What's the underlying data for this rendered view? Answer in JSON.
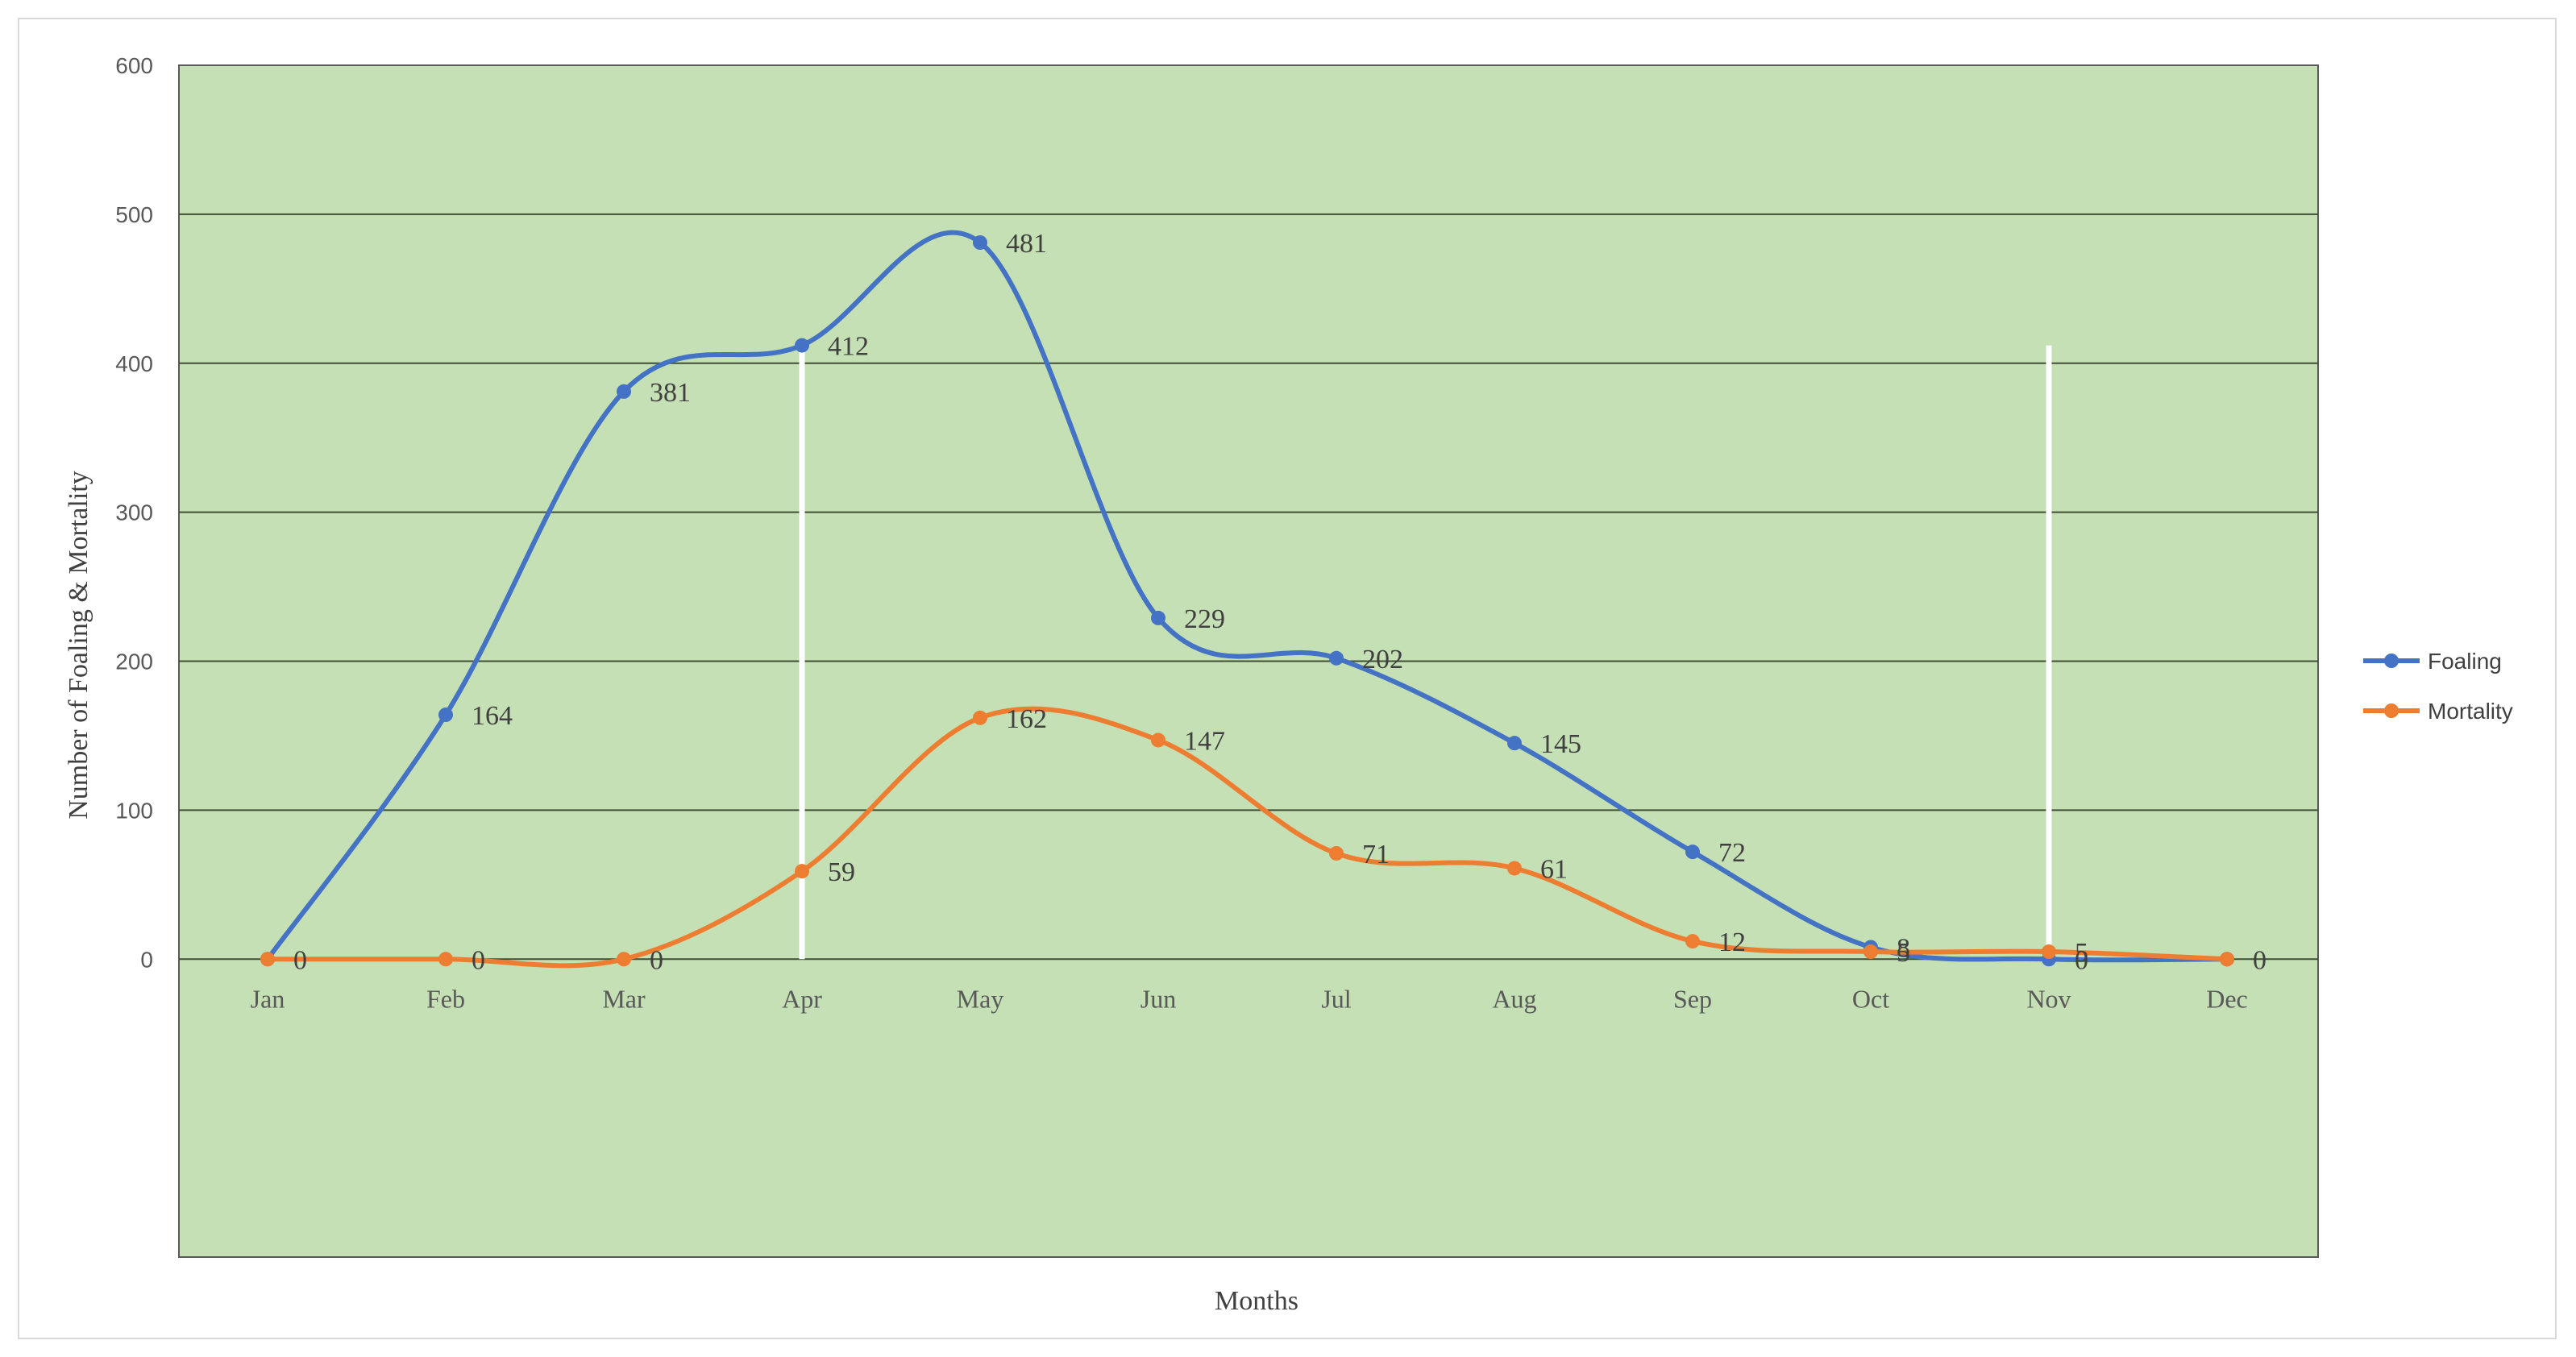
{
  "chart_data": {
    "type": "line",
    "smooth": true,
    "title": "",
    "xlabel": "Months",
    "ylabel": "Number of Foaling & Mortality",
    "ylim": [
      -200,
      600
    ],
    "yticks": [
      "0",
      "100",
      "200",
      "300",
      "400",
      "500",
      "600"
    ],
    "categories": [
      "Jan",
      "Feb",
      "Mar",
      "Apr",
      "May",
      "Jun",
      "Jul",
      "Aug",
      "Sep",
      "Oct",
      "Nov",
      "Dec"
    ],
    "grid": true,
    "legend": "right",
    "plot_background": "#c5e0b4",
    "series": [
      {
        "name": "Foaling",
        "color": "#4472c4",
        "values": [
          0,
          164,
          381,
          412,
          481,
          229,
          202,
          145,
          72,
          8,
          0,
          0
        ],
        "labels": [
          "",
          "164",
          "381",
          "412",
          "481",
          "229",
          "202",
          "145",
          "72",
          "8",
          "0",
          ""
        ]
      },
      {
        "name": "Mortality",
        "color": "#ed7d31",
        "values": [
          0,
          0,
          0,
          59,
          162,
          147,
          71,
          61,
          12,
          5,
          5,
          0
        ],
        "labels": [
          "0",
          "0",
          "0",
          "59",
          "162",
          "147",
          "71",
          "61",
          "12",
          "5",
          "5",
          "0"
        ]
      }
    ],
    "reference_lines": [
      {
        "category": "Apr",
        "from": 0,
        "to": 412,
        "color": "#ffffff"
      },
      {
        "category": "Nov",
        "from": 0,
        "to": 412,
        "color": "#ffffff"
      }
    ]
  }
}
